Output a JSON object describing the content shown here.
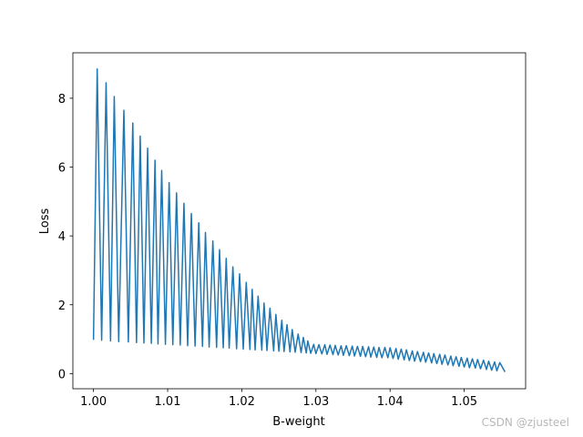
{
  "chart_data": {
    "type": "line",
    "x_label": "B-weight",
    "y_label": "Loss",
    "watermark": "CSDN @zjusteel",
    "color": "#1f77b4",
    "x": [
      1.0,
      1.0005,
      1.0011,
      1.0017,
      1.0023,
      1.0028,
      1.0034,
      1.0041,
      1.0047,
      1.0053,
      1.0058,
      1.0063,
      1.0068,
      1.0073,
      1.0078,
      1.0083,
      1.0087,
      1.0092,
      1.0097,
      1.0102,
      1.0107,
      1.0112,
      1.0117,
      1.0122,
      1.0127,
      1.0132,
      1.0137,
      1.0142,
      1.0147,
      1.0151,
      1.0156,
      1.0161,
      1.0166,
      1.017,
      1.0175,
      1.0179,
      1.0183,
      1.0188,
      1.0193,
      1.0197,
      1.0202,
      1.0206,
      1.0211,
      1.0214,
      1.0218,
      1.0222,
      1.0227,
      1.023,
      1.0234,
      1.0238,
      1.0243,
      1.0246,
      1.025,
      1.0254,
      1.0257,
      1.0261,
      1.0265,
      1.0268,
      1.0272,
      1.0276,
      1.028,
      1.0283,
      1.0287,
      1.0289,
      1.0293,
      1.0297,
      1.03,
      1.0304,
      1.0308,
      1.0312,
      1.0315,
      1.0319,
      1.0323,
      1.0326,
      1.033,
      1.0334,
      1.0337,
      1.0341,
      1.0345,
      1.0349,
      1.0352,
      1.0356,
      1.036,
      1.0363,
      1.0367,
      1.0371,
      1.0374,
      1.0378,
      1.0382,
      1.0385,
      1.0389,
      1.0393,
      1.0397,
      1.04,
      1.0404,
      1.0408,
      1.0411,
      1.0415,
      1.0419,
      1.0422,
      1.0426,
      1.043,
      1.0433,
      1.0437,
      1.0441,
      1.0445,
      1.0448,
      1.0452,
      1.0456,
      1.0459,
      1.0463,
      1.0467,
      1.047,
      1.0474,
      1.0478,
      1.0482,
      1.0485,
      1.0489,
      1.0493,
      1.0496,
      1.05,
      1.0504,
      1.0507,
      1.0511,
      1.0515,
      1.0518,
      1.0522,
      1.0526,
      1.053,
      1.0533,
      1.0537,
      1.0541,
      1.0544,
      1.0548,
      1.0555
    ],
    "values": [
      0.98,
      8.85,
      0.97,
      8.45,
      0.95,
      8.05,
      0.93,
      7.65,
      0.92,
      7.28,
      0.9,
      6.9,
      0.89,
      6.55,
      0.88,
      6.2,
      0.86,
      5.9,
      0.85,
      5.55,
      0.84,
      5.25,
      0.83,
      4.95,
      0.81,
      4.65,
      0.8,
      4.38,
      0.79,
      4.1,
      0.77,
      3.85,
      0.76,
      3.6,
      0.75,
      3.35,
      0.74,
      3.1,
      0.72,
      2.9,
      0.71,
      2.65,
      0.7,
      2.45,
      0.69,
      2.25,
      0.68,
      2.05,
      0.67,
      1.9,
      0.66,
      1.72,
      0.65,
      1.55,
      0.64,
      1.42,
      0.63,
      1.28,
      0.62,
      1.15,
      0.61,
      1.05,
      0.6,
      0.95,
      0.59,
      0.85,
      0.58,
      0.84,
      0.57,
      0.84,
      0.56,
      0.83,
      0.55,
      0.82,
      0.54,
      0.81,
      0.53,
      0.81,
      0.52,
      0.8,
      0.51,
      0.79,
      0.5,
      0.79,
      0.49,
      0.78,
      0.48,
      0.77,
      0.47,
      0.76,
      0.46,
      0.76,
      0.46,
      0.75,
      0.44,
      0.73,
      0.42,
      0.71,
      0.4,
      0.69,
      0.38,
      0.66,
      0.36,
      0.64,
      0.35,
      0.62,
      0.33,
      0.6,
      0.31,
      0.58,
      0.29,
      0.56,
      0.27,
      0.54,
      0.25,
      0.51,
      0.23,
      0.49,
      0.21,
      0.47,
      0.19,
      0.45,
      0.17,
      0.43,
      0.16,
      0.41,
      0.14,
      0.39,
      0.12,
      0.36,
      0.1,
      0.34,
      0.08,
      0.32,
      0.05
    ],
    "xlim": [
      0.99722,
      1.05828
    ],
    "ylim": [
      -0.44,
      9.32
    ],
    "xticks": [
      {
        "value": 1.0,
        "label": "1.00"
      },
      1.01,
      1.02,
      1.03,
      1.04,
      1.05
    ],
    "yticks": [
      0,
      2,
      4,
      6,
      8
    ],
    "grid": false
  }
}
